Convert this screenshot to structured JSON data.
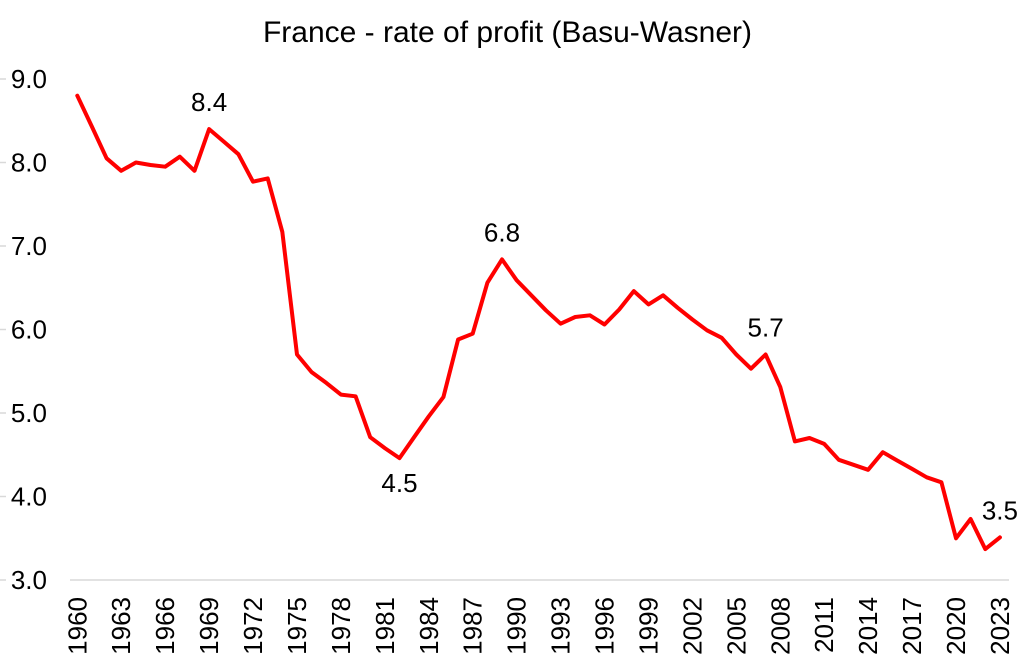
{
  "chart_data": {
    "type": "line",
    "title": "France - rate of profit (Basu-Wasner)",
    "series_name": "rate of profit",
    "grid": "none",
    "legend": "none",
    "ylim": [
      3.0,
      9.0
    ],
    "xlim": [
      1960,
      2023
    ],
    "y_tick_labels": [
      "9.0",
      "8.0",
      "7.0",
      "6.0",
      "5.0",
      "4.0",
      "3.0"
    ],
    "x_tick_labels": [
      "1960",
      "1963",
      "1966",
      "1969",
      "1972",
      "1975",
      "1978",
      "1981",
      "1984",
      "1987",
      "1990",
      "1993",
      "1996",
      "1999",
      "2002",
      "2005",
      "2008",
      "2011",
      "2014",
      "2017",
      "2020",
      "2023"
    ],
    "years": [
      1960,
      1961,
      1962,
      1963,
      1964,
      1965,
      1966,
      1967,
      1968,
      1969,
      1970,
      1971,
      1972,
      1973,
      1974,
      1975,
      1976,
      1977,
      1978,
      1979,
      1980,
      1981,
      1982,
      1983,
      1984,
      1985,
      1986,
      1987,
      1988,
      1989,
      1990,
      1991,
      1992,
      1993,
      1994,
      1995,
      1996,
      1997,
      1998,
      1999,
      2000,
      2001,
      2002,
      2003,
      2004,
      2005,
      2006,
      2007,
      2008,
      2009,
      2010,
      2011,
      2012,
      2013,
      2014,
      2015,
      2016,
      2017,
      2018,
      2019,
      2020,
      2021,
      2022,
      2023
    ],
    "values": [
      8.8,
      8.43,
      8.05,
      7.9,
      8.0,
      7.97,
      7.95,
      8.07,
      7.9,
      8.4,
      8.25,
      8.1,
      7.77,
      7.81,
      7.17,
      5.7,
      5.49,
      5.36,
      5.22,
      5.2,
      4.71,
      4.58,
      4.46,
      4.71,
      4.96,
      5.19,
      5.88,
      5.95,
      6.56,
      6.84,
      6.59,
      6.41,
      6.23,
      6.07,
      6.15,
      6.17,
      6.06,
      6.24,
      6.46,
      6.3,
      6.41,
      6.26,
      6.12,
      5.99,
      5.9,
      5.7,
      5.53,
      5.7,
      5.31,
      4.66,
      4.7,
      4.63,
      4.44,
      4.38,
      4.32,
      4.53,
      4.43,
      4.33,
      4.23,
      4.17,
      3.5,
      3.73,
      3.37,
      3.51
    ],
    "annotations": [
      {
        "year": 1969,
        "text": "8.4",
        "placement": "above"
      },
      {
        "year": 1982,
        "text": "4.5",
        "placement": "below"
      },
      {
        "year": 1989,
        "text": "6.8",
        "placement": "above"
      },
      {
        "year": 2007,
        "text": "5.7",
        "placement": "above"
      },
      {
        "year": 2023,
        "text": "3.5",
        "placement": "above"
      }
    ],
    "colors": {
      "line": "#FF0000",
      "axis": "#D9D9D9",
      "text": "#000000"
    }
  }
}
